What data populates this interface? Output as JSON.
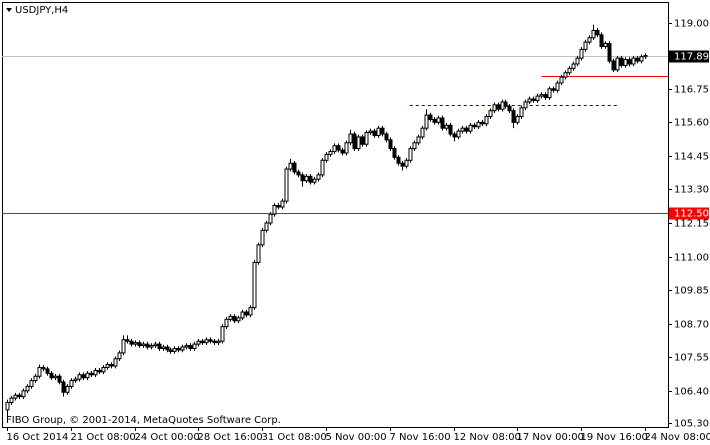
{
  "chart_data": {
    "type": "candlestick",
    "title": "USDJPY,H4",
    "footer": "FIBO Group, © 2001-2014, MetaQuotes Software Corp.",
    "up_color": "#ffffff",
    "down_color": "#000000",
    "ylim": [
      105.16,
      119.69
    ],
    "xlim": [
      -1.25,
      165.75
    ],
    "yticks": [
      {
        "value": 119,
        "label": "119.00"
      },
      {
        "value": 116.75,
        "label": "116.75"
      },
      {
        "value": 115.6,
        "label": "115.60"
      },
      {
        "value": 114.45,
        "label": "114.45"
      },
      {
        "value": 113.3,
        "label": "113.30"
      },
      {
        "value": 112.15,
        "label": "112.15"
      },
      {
        "value": 111,
        "label": "111.00"
      },
      {
        "value": 109.85,
        "label": "109.85"
      },
      {
        "value": 108.7,
        "label": "108.70"
      },
      {
        "value": 107.55,
        "label": "107.55"
      },
      {
        "value": 106.4,
        "label": "106.40"
      },
      {
        "value": 105.3,
        "label": "105.30"
      }
    ],
    "hlines": [
      {
        "value": 112.5,
        "label": "112.50",
        "color": "#ff0000"
      }
    ],
    "levels": [
      {
        "value": 117.2,
        "x": [
          134,
          166
        ],
        "color": "#ff0000",
        "style": "solid"
      },
      {
        "value": 116.2,
        "x": [
          101,
          153
        ],
        "color": "#0000cc",
        "style": "dashed"
      }
    ],
    "categories": [
      "16 Oct 2014",
      null,
      null,
      null,
      null,
      null,
      null,
      null,
      null,
      null,
      null,
      null,
      null,
      null,
      null,
      null,
      "21 Oct 08:00",
      null,
      null,
      null,
      null,
      null,
      null,
      null,
      null,
      null,
      null,
      null,
      null,
      null,
      null,
      null,
      "24 Oct 00:00",
      null,
      null,
      null,
      null,
      null,
      null,
      null,
      null,
      null,
      null,
      null,
      null,
      null,
      null,
      null,
      "28 Oct 16:00",
      null,
      null,
      null,
      null,
      null,
      null,
      null,
      null,
      null,
      null,
      null,
      null,
      null,
      null,
      null,
      "31 Oct 08:00",
      null,
      null,
      null,
      null,
      null,
      null,
      null,
      null,
      null,
      null,
      null,
      null,
      null,
      null,
      null,
      "5 Nov 00:00",
      null,
      null,
      null,
      null,
      null,
      null,
      null,
      null,
      null,
      null,
      null,
      null,
      null,
      null,
      null,
      "7 Nov 16:00",
      null,
      null,
      null,
      null,
      null,
      null,
      null,
      null,
      null,
      null,
      null,
      null,
      null,
      null,
      null,
      "12 Nov 08:00",
      null,
      null,
      null,
      null,
      null,
      null,
      null,
      null,
      null,
      null,
      null,
      null,
      null,
      null,
      null,
      "17 Nov 00:00",
      null,
      null,
      null,
      null,
      null,
      null,
      null,
      null,
      null,
      null,
      null,
      null,
      null,
      null,
      null,
      "19 Nov 16:00",
      null,
      null,
      null,
      null,
      null,
      null,
      null,
      null,
      null,
      null,
      null,
      null,
      null,
      null,
      null,
      "24 Nov 08:00"
    ],
    "candles": [
      [
        105.75,
        106.1,
        105.35,
        106
      ],
      [
        106,
        106.23,
        105.92,
        106.15
      ],
      [
        106.15,
        106.33,
        106.07,
        106.25
      ],
      [
        106.25,
        106.33,
        106.12,
        106.2
      ],
      [
        106.2,
        106.48,
        106.12,
        106.4
      ],
      [
        106.4,
        106.63,
        106.32,
        106.55
      ],
      [
        106.55,
        106.83,
        106.47,
        106.75
      ],
      [
        106.75,
        106.98,
        106.67,
        106.9
      ],
      [
        106.9,
        107.3,
        106.82,
        107.2
      ],
      [
        107.2,
        107.28,
        107.07,
        107.15
      ],
      [
        107.15,
        107.23,
        106.92,
        107
      ],
      [
        107,
        107.08,
        106.77,
        106.85
      ],
      [
        106.85,
        106.98,
        106.77,
        106.9
      ],
      [
        106.9,
        106.98,
        106.62,
        106.7
      ],
      [
        106.7,
        106.78,
        106.2,
        106.35
      ],
      [
        106.35,
        106.63,
        106.27,
        106.55
      ],
      [
        106.55,
        106.83,
        106.47,
        106.75
      ],
      [
        106.75,
        106.88,
        106.67,
        106.8
      ],
      [
        106.8,
        107.03,
        106.72,
        106.95
      ],
      [
        106.95,
        107.03,
        106.77,
        106.85
      ],
      [
        106.85,
        107.08,
        106.77,
        107
      ],
      [
        107,
        107.08,
        106.87,
        106.95
      ],
      [
        106.95,
        107.18,
        106.87,
        107.1
      ],
      [
        107.1,
        107.18,
        106.97,
        107.05
      ],
      [
        107.05,
        107.28,
        106.97,
        107.2
      ],
      [
        107.2,
        107.38,
        107.12,
        107.3
      ],
      [
        107.3,
        107.38,
        107.17,
        107.25
      ],
      [
        107.25,
        107.58,
        107.17,
        107.5
      ],
      [
        107.5,
        107.78,
        107.42,
        107.7
      ],
      [
        107.7,
        108.3,
        107.62,
        108.15
      ],
      [
        108.15,
        108.3,
        108.02,
        108.1
      ],
      [
        108.1,
        108.18,
        107.92,
        108
      ],
      [
        108,
        108.13,
        107.92,
        108.05
      ],
      [
        108.05,
        108.13,
        107.87,
        107.95
      ],
      [
        107.95,
        108.08,
        107.87,
        108
      ],
      [
        108,
        108.08,
        107.82,
        107.9
      ],
      [
        107.9,
        108.03,
        107.82,
        107.95
      ],
      [
        107.95,
        108.08,
        107.87,
        108
      ],
      [
        108,
        108.08,
        107.77,
        107.85
      ],
      [
        107.85,
        107.98,
        107.77,
        107.9
      ],
      [
        107.9,
        107.98,
        107.72,
        107.8
      ],
      [
        107.8,
        107.88,
        107.67,
        107.75
      ],
      [
        107.75,
        107.93,
        107.67,
        107.85
      ],
      [
        107.85,
        107.93,
        107.72,
        107.8
      ],
      [
        107.8,
        107.98,
        107.72,
        107.9
      ],
      [
        107.9,
        108.03,
        107.82,
        107.95
      ],
      [
        107.95,
        108.03,
        107.77,
        107.85
      ],
      [
        107.85,
        108.08,
        107.77,
        108
      ],
      [
        108,
        108.18,
        107.92,
        108.1
      ],
      [
        108.1,
        108.18,
        107.97,
        108.05
      ],
      [
        108.05,
        108.23,
        107.97,
        108.15
      ],
      [
        108.15,
        108.23,
        108.02,
        108.1
      ],
      [
        108.1,
        108.18,
        107.97,
        108.05
      ],
      [
        108.05,
        108.18,
        107.97,
        108.1
      ],
      [
        108.1,
        108.68,
        108.02,
        108.6
      ],
      [
        108.6,
        108.93,
        108.52,
        108.85
      ],
      [
        108.85,
        109.03,
        108.77,
        108.95
      ],
      [
        108.95,
        109.03,
        108.72,
        108.8
      ],
      [
        108.8,
        108.98,
        108.72,
        108.9
      ],
      [
        108.9,
        109.18,
        108.82,
        109.1
      ],
      [
        109.1,
        109.18,
        108.92,
        109
      ],
      [
        109,
        109.33,
        108.92,
        109.25
      ],
      [
        109.25,
        110.88,
        109.17,
        110.8
      ],
      [
        110.8,
        111.48,
        110.72,
        111.4
      ],
      [
        111.4,
        111.98,
        111.32,
        111.9
      ],
      [
        111.9,
        112.23,
        111.82,
        112.15
      ],
      [
        112.15,
        112.53,
        112.07,
        112.45
      ],
      [
        112.45,
        112.83,
        112.37,
        112.75
      ],
      [
        112.75,
        112.83,
        112.62,
        112.7
      ],
      [
        112.7,
        112.98,
        112.62,
        112.9
      ],
      [
        112.9,
        114.08,
        112.82,
        114
      ],
      [
        114,
        114.35,
        113.92,
        114.2
      ],
      [
        114.2,
        114.28,
        113.82,
        113.9
      ],
      [
        113.9,
        113.98,
        113.72,
        113.8
      ],
      [
        113.8,
        113.88,
        113.4,
        113.6
      ],
      [
        113.6,
        113.83,
        113.52,
        113.75
      ],
      [
        113.75,
        113.83,
        113.47,
        113.55
      ],
      [
        113.55,
        113.73,
        113.47,
        113.65
      ],
      [
        113.65,
        113.88,
        113.57,
        113.8
      ],
      [
        113.8,
        114.38,
        113.72,
        114.3
      ],
      [
        114.3,
        114.58,
        114.22,
        114.5
      ],
      [
        114.5,
        114.68,
        114.42,
        114.6
      ],
      [
        114.6,
        114.88,
        114.52,
        114.8
      ],
      [
        114.8,
        114.88,
        114.57,
        114.65
      ],
      [
        114.65,
        114.73,
        114.47,
        114.55
      ],
      [
        114.55,
        114.98,
        114.47,
        114.9
      ],
      [
        114.9,
        115.35,
        114.82,
        115.2
      ],
      [
        115.2,
        115.28,
        114.62,
        114.7
      ],
      [
        114.7,
        115.18,
        114.62,
        115.1
      ],
      [
        115.1,
        115.18,
        114.77,
        114.85
      ],
      [
        114.85,
        115.33,
        114.77,
        115.25
      ],
      [
        115.25,
        115.38,
        115.17,
        115.3
      ],
      [
        115.3,
        115.38,
        115.07,
        115.15
      ],
      [
        115.15,
        115.48,
        115.07,
        115.4
      ],
      [
        115.4,
        115.48,
        115.12,
        115.2
      ],
      [
        115.2,
        115.28,
        114.92,
        115
      ],
      [
        115,
        115.08,
        114.62,
        114.7
      ],
      [
        114.7,
        114.78,
        114.32,
        114.4
      ],
      [
        114.4,
        114.48,
        114.12,
        114.2
      ],
      [
        114.2,
        114.28,
        113.95,
        114.1
      ],
      [
        114.1,
        114.38,
        114.02,
        114.3
      ],
      [
        114.3,
        114.78,
        114.22,
        114.7
      ],
      [
        114.7,
        114.98,
        114.62,
        114.9
      ],
      [
        114.9,
        115.18,
        114.82,
        115.1
      ],
      [
        115.1,
        115.48,
        115.02,
        115.4
      ],
      [
        115.4,
        116.05,
        115.32,
        115.85
      ],
      [
        115.85,
        115.93,
        115.62,
        115.7
      ],
      [
        115.7,
        115.78,
        115.52,
        115.6
      ],
      [
        115.6,
        115.83,
        115.52,
        115.75
      ],
      [
        115.75,
        115.83,
        115.32,
        115.4
      ],
      [
        115.4,
        115.58,
        115.32,
        115.5
      ],
      [
        115.5,
        115.58,
        115.12,
        115.2
      ],
      [
        115.2,
        115.28,
        114.95,
        115.1
      ],
      [
        115.1,
        115.38,
        115.02,
        115.3
      ],
      [
        115.3,
        115.48,
        115.22,
        115.4
      ],
      [
        115.4,
        115.48,
        115.22,
        115.3
      ],
      [
        115.3,
        115.58,
        115.22,
        115.5
      ],
      [
        115.5,
        115.58,
        115.37,
        115.45
      ],
      [
        115.45,
        115.68,
        115.37,
        115.6
      ],
      [
        115.6,
        115.68,
        115.47,
        115.55
      ],
      [
        115.55,
        115.88,
        115.47,
        115.8
      ],
      [
        115.8,
        116.08,
        115.72,
        116
      ],
      [
        116,
        116.28,
        115.92,
        116.2
      ],
      [
        116.2,
        116.28,
        115.97,
        116.05
      ],
      [
        116.05,
        116.38,
        115.97,
        116.3
      ],
      [
        116.3,
        116.38,
        116.07,
        116.15
      ],
      [
        116.15,
        116.23,
        115.92,
        116
      ],
      [
        116,
        116.08,
        115.4,
        115.6
      ],
      [
        115.6,
        115.88,
        115.52,
        115.8
      ],
      [
        115.8,
        116.18,
        115.72,
        116.1
      ],
      [
        116.1,
        116.38,
        116.02,
        116.3
      ],
      [
        116.3,
        116.48,
        116.22,
        116.4
      ],
      [
        116.4,
        116.48,
        116.27,
        116.35
      ],
      [
        116.35,
        116.58,
        116.27,
        116.5
      ],
      [
        116.5,
        116.63,
        116.42,
        116.55
      ],
      [
        116.55,
        116.63,
        116.37,
        116.45
      ],
      [
        116.45,
        116.83,
        116.37,
        116.75
      ],
      [
        116.75,
        116.83,
        116.62,
        116.7
      ],
      [
        116.7,
        117.03,
        116.62,
        116.95
      ],
      [
        116.95,
        117.23,
        116.87,
        117.15
      ],
      [
        117.15,
        117.38,
        117.07,
        117.3
      ],
      [
        117.3,
        117.53,
        117.22,
        117.45
      ],
      [
        117.45,
        117.68,
        117.37,
        117.6
      ],
      [
        117.6,
        117.88,
        117.52,
        117.8
      ],
      [
        117.8,
        118.18,
        117.72,
        118.1
      ],
      [
        118.1,
        118.43,
        118.02,
        118.35
      ],
      [
        118.35,
        118.58,
        118.27,
        118.5
      ],
      [
        118.5,
        118.95,
        118.42,
        118.75
      ],
      [
        118.75,
        118.83,
        118.52,
        118.6
      ],
      [
        118.6,
        118.68,
        118.12,
        118.2
      ],
      [
        118.2,
        118.38,
        118.12,
        118.3
      ],
      [
        118.3,
        118.38,
        117.62,
        117.7
      ],
      [
        117.7,
        117.78,
        117.32,
        117.4
      ],
      [
        117.4,
        117.88,
        117.32,
        117.8
      ],
      [
        117.8,
        117.88,
        117.47,
        117.55
      ],
      [
        117.55,
        117.83,
        117.47,
        117.75
      ],
      [
        117.75,
        117.83,
        117.52,
        117.6
      ],
      [
        117.6,
        117.88,
        117.52,
        117.8
      ],
      [
        117.8,
        117.88,
        117.62,
        117.7
      ],
      [
        117.7,
        117.93,
        117.62,
        117.85
      ],
      [
        117.85,
        117.97,
        117.77,
        117.89
      ]
    ]
  }
}
